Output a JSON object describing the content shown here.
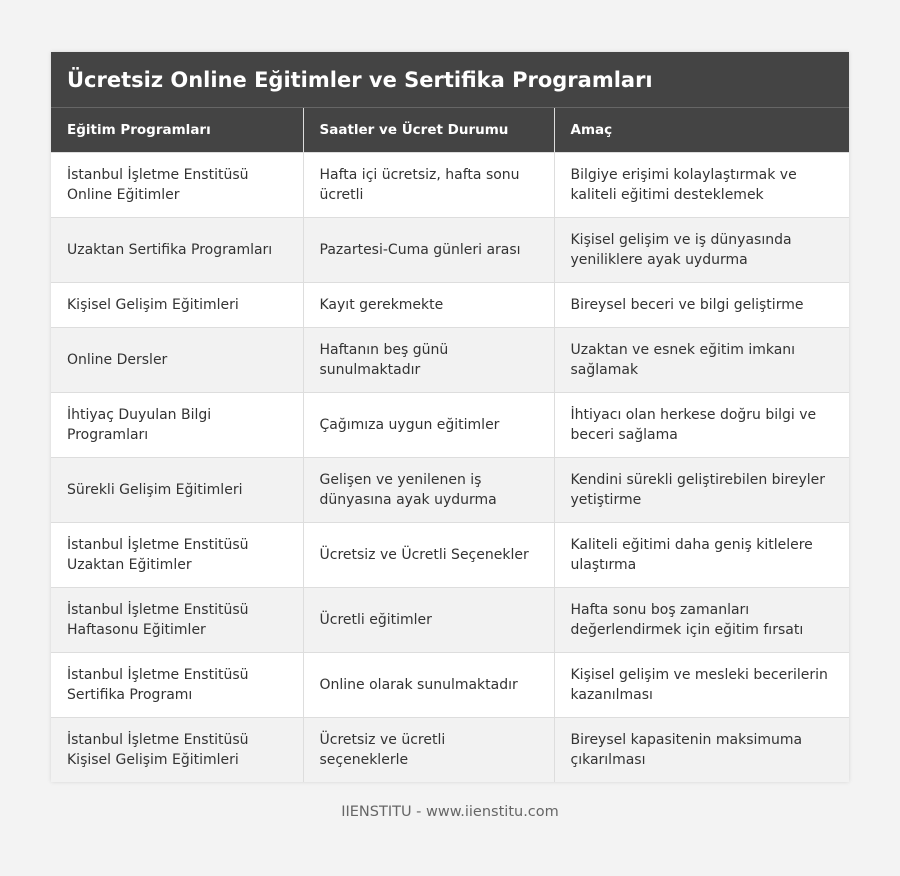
{
  "title": "Ücretsiz Online Eğitimler ve Sertifika Programları",
  "columns": [
    "Eğitim Programları",
    "Saatler ve Ücret Durumu",
    "Amaç"
  ],
  "rows": [
    [
      "İstanbul İşletme Enstitüsü Online Eğitimler",
      "Hafta içi ücretsiz, hafta sonu ücretli",
      "Bilgiye erişimi kolaylaştırmak ve kaliteli eğitimi desteklemek"
    ],
    [
      "Uzaktan Sertifika Programları",
      "Pazartesi-Cuma günleri arası",
      "Kişisel gelişim ve iş dünyasında yeniliklere ayak uydurma"
    ],
    [
      "Kişisel Gelişim Eğitimleri",
      "Kayıt gerekmekte",
      "Bireysel beceri ve bilgi geliştirme"
    ],
    [
      "Online Dersler",
      "Haftanın beş günü sunulmaktadır",
      "Uzaktan ve esnek eğitim imkanı sağlamak"
    ],
    [
      "İhtiyaç Duyulan Bilgi Programları",
      "Çağımıza uygun eğitimler",
      "İhtiyacı olan herkese doğru bilgi ve beceri sağlama"
    ],
    [
      "Sürekli Gelişim Eğitimleri",
      "Gelişen ve yenilenen iş dünyasına ayak uydurma",
      "Kendini sürekli geliştirebilen bireyler yetiştirme"
    ],
    [
      "İstanbul İşletme Enstitüsü Uzaktan Eğitimler",
      "Ücretsiz ve Ücretli Seçenekler",
      "Kaliteli eğitimi daha geniş kitlelere ulaştırma"
    ],
    [
      "İstanbul İşletme Enstitüsü Haftasonu Eğitimler",
      "Ücretli eğitimler",
      "Hafta sonu boş zamanları değerlendirmek için eğitim fırsatı"
    ],
    [
      "İstanbul İşletme Enstitüsü Sertifika Programı",
      "Online olarak sunulmaktadır",
      "Kişisel gelişim ve mesleki becerilerin kazanılması"
    ],
    [
      "İstanbul İşletme Enstitüsü Kişisel Gelişim Eğitimleri",
      "Ücretsiz ve ücretli seçeneklerle",
      "Bireysel kapasitenin maksimuma çıkarılması"
    ]
  ],
  "footer": "IIENSTITU - www.iienstitu.com",
  "colors": {
    "header_bg": "#444444",
    "stripe": "#f2f2f2"
  }
}
